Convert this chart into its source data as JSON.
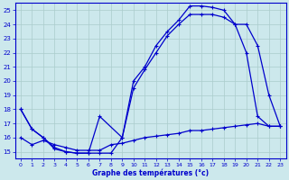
{
  "xlabel": "Graphe des températures (°c)",
  "bg_color": "#cce8ec",
  "line_color": "#0000cc",
  "grid_color": "#aacccc",
  "xlim": [
    -0.5,
    23.5
  ],
  "ylim": [
    14.5,
    25.5
  ],
  "xticks": [
    0,
    1,
    2,
    3,
    4,
    5,
    6,
    7,
    8,
    9,
    10,
    11,
    12,
    13,
    14,
    15,
    16,
    17,
    18,
    19,
    20,
    21,
    22,
    23
  ],
  "yticks": [
    15,
    16,
    17,
    18,
    19,
    20,
    21,
    22,
    23,
    24,
    25
  ],
  "line1_x": [
    0,
    1,
    2,
    3,
    4,
    5,
    6,
    7,
    9,
    10,
    11,
    12,
    13,
    14,
    15,
    16,
    17,
    18,
    19,
    20,
    21,
    22,
    23
  ],
  "line1_y": [
    18,
    16.6,
    16,
    15.2,
    15,
    14.9,
    14.9,
    17.5,
    16.0,
    20.0,
    21.0,
    22.5,
    23.5,
    24.3,
    25.3,
    25.3,
    25.2,
    25.0,
    24.0,
    24.0,
    22.5,
    19.0,
    16.8
  ],
  "line2_x": [
    0,
    1,
    2,
    3,
    4,
    5,
    6,
    7,
    8,
    9,
    10,
    11,
    12,
    13,
    14,
    15,
    16,
    17,
    18,
    19,
    20,
    21,
    22,
    23
  ],
  "line2_y": [
    18,
    16.6,
    16,
    15.3,
    15,
    14.9,
    14.9,
    14.9,
    14.9,
    16.0,
    19.5,
    20.8,
    22.0,
    23.2,
    24.0,
    24.7,
    24.7,
    24.7,
    24.5,
    24.0,
    22.0,
    17.5,
    16.8,
    16.8
  ],
  "line3_x": [
    0,
    1,
    2,
    3,
    4,
    5,
    6,
    7,
    8,
    9,
    10,
    11,
    12,
    13,
    14,
    15,
    16,
    17,
    18,
    19,
    20,
    21,
    22,
    23
  ],
  "line3_y": [
    16.0,
    15.5,
    15.8,
    15.5,
    15.3,
    15.1,
    15.1,
    15.1,
    15.5,
    15.6,
    15.8,
    16.0,
    16.1,
    16.2,
    16.3,
    16.5,
    16.5,
    16.6,
    16.7,
    16.8,
    16.9,
    17.0,
    16.8,
    16.8
  ]
}
